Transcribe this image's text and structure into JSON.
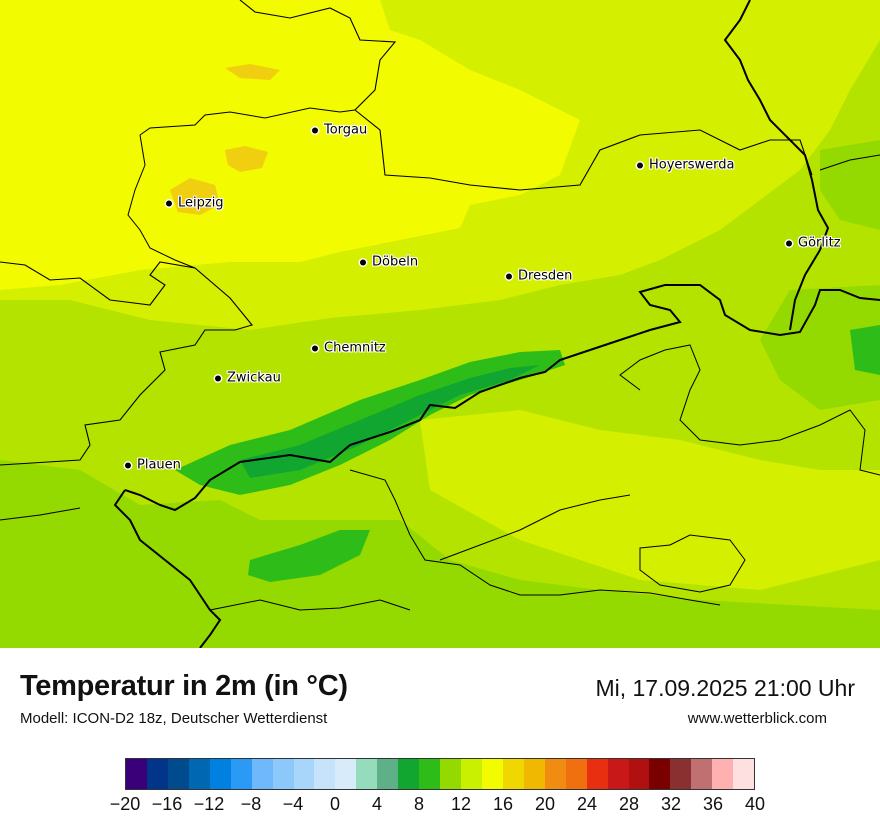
{
  "map": {
    "cities": [
      {
        "name": "Torgau",
        "dot-id": "torgau"
      },
      {
        "name": "Leipzig",
        "dot-id": "leipzig"
      },
      {
        "name": "Hoyerswerda",
        "dot-id": "hoyerswerda"
      },
      {
        "name": "Görlitz",
        "dot-id": "goerlitz"
      },
      {
        "name": "Döbeln",
        "dot-id": "doebeln"
      },
      {
        "name": "Dresden",
        "dot-id": "dresden"
      },
      {
        "name": "Chemnitz",
        "dot-id": "chemnitz"
      },
      {
        "name": "Zwickau",
        "dot-id": "zwickau"
      },
      {
        "name": "Plauen",
        "dot-id": "plauen"
      }
    ],
    "colors": {
      "yellow": "#f2fb00",
      "yellow_green": "#d4f000",
      "light_green": "#b4e300",
      "green": "#94d900",
      "mid_green": "#2ebd18",
      "dark_green": "#10a630",
      "orange_patch": "#f0cf10",
      "border": "#000000"
    }
  },
  "footer": {
    "title": "Temperatur in 2m (in °C)",
    "model": "Modell: ICON-D2 18z, Deutscher Wetterdienst",
    "datetime": "Mi, 17.09.2025 21:00 Uhr",
    "website": "www.wetterblick.com"
  },
  "legend": {
    "colors": [
      "#3a007a",
      "#00358a",
      "#004a8e",
      "#0067b3",
      "#0080e0",
      "#2a9af5",
      "#6fb8fb",
      "#8cc8fa",
      "#a8d6fb",
      "#c6e3fb",
      "#d8ebfb",
      "#95dcbc",
      "#5faf88",
      "#10a630",
      "#2ebd18",
      "#94d900",
      "#c8f000",
      "#f2fb00",
      "#f0d700",
      "#f0b800",
      "#f08c10",
      "#f07010",
      "#e83010",
      "#c81818",
      "#b01010",
      "#7a0000",
      "#8a3030",
      "#c07070",
      "#ffb0b0",
      "#ffe0e0"
    ],
    "ticks": [
      "−20",
      "−16",
      "−12",
      "−8",
      "−4",
      "0",
      "4",
      "8",
      "12",
      "16",
      "20",
      "24",
      "28",
      "32",
      "36",
      "40"
    ]
  }
}
